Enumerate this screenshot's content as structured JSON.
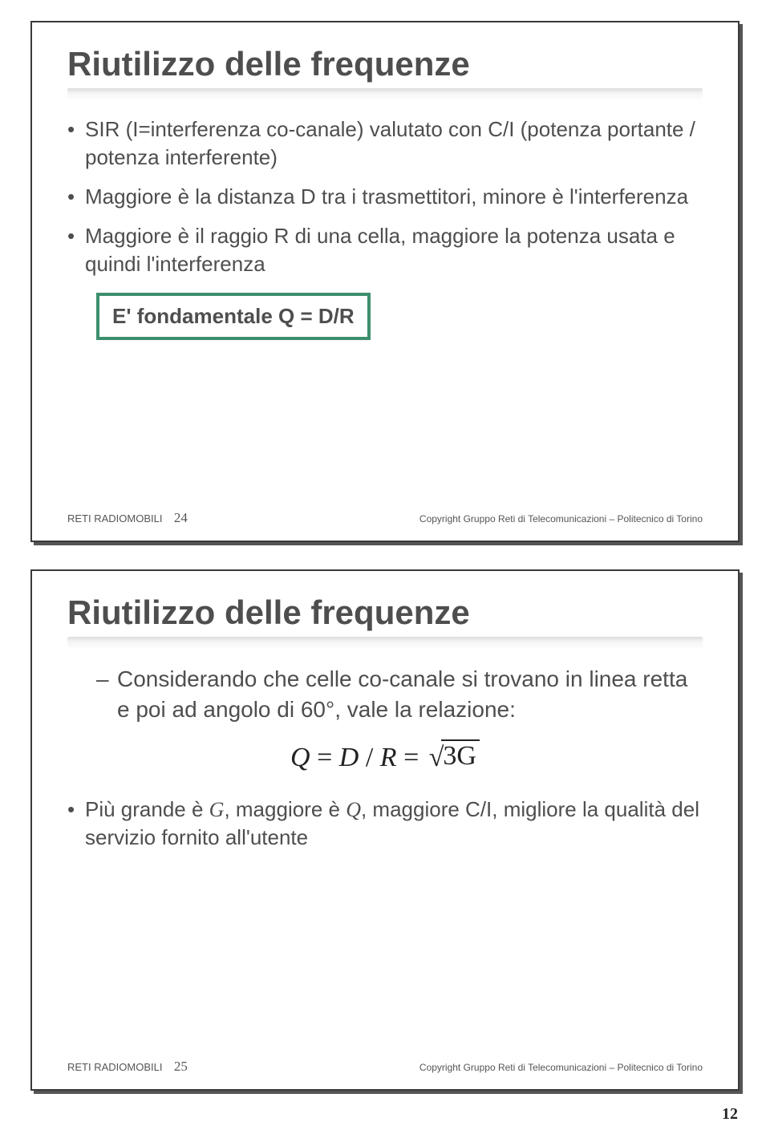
{
  "page_number": "12",
  "slide1": {
    "title": "Riutilizzo delle frequenze",
    "bullets": [
      "SIR (I=interferenza co-canale) valutato con C/I (potenza portante / potenza interferente)",
      "Maggiore è la distanza D tra i trasmettitori, minore è l'interferenza",
      "Maggiore è il raggio R di una cella, maggiore la potenza usata e quindi l'interferenza"
    ],
    "boxed": "E' fondamentale Q = D/R",
    "footer_left": "RETI RADIOMOBILI",
    "footer_num": "24",
    "footer_right": "Copyright Gruppo Reti di Telecomunicazioni – Politecnico di Torino"
  },
  "slide2": {
    "title": "Riutilizzo delle frequenze",
    "dash": "Considerando che celle co-canale si trovano in linea retta e poi ad angolo di 60°, vale la relazione:",
    "formula_q": "Q",
    "formula_eq1": " = ",
    "formula_d": "D",
    "formula_slash": " / ",
    "formula_r": "R",
    "formula_eq2": " = ",
    "formula_3g": "3G",
    "bullet": "Più grande è ",
    "bullet_g": "G",
    "bullet_mid": ", maggiore è ",
    "bullet_q": "Q",
    "bullet_end": ", maggiore C/I, migliore la qualità del servizio fornito all'utente",
    "footer_left": "RETI RADIOMOBILI",
    "footer_num": "25",
    "footer_right": "Copyright Gruppo Reti di Telecomunicazioni – Politecnico di Torino"
  }
}
